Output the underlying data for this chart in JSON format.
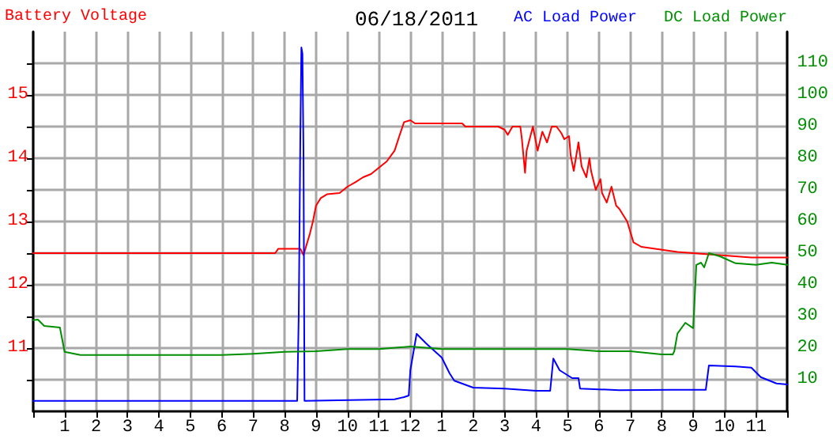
{
  "chart_data": {
    "type": "line",
    "title": "06/18/2011",
    "ylabel": "Battery Voltage",
    "xlim": [
      "2011-06-18T00:00",
      "2011-06-19T00:00"
    ],
    "xticks": [
      {
        "value": "2011-06-18T00:00",
        "label": null
      },
      {
        "value": "2011-06-18T01:00",
        "label": "1"
      },
      {
        "value": "2011-06-18T02:00",
        "label": "2"
      },
      {
        "value": "2011-06-18T03:00",
        "label": "3"
      },
      {
        "value": "2011-06-18T04:00",
        "label": "4"
      },
      {
        "value": "2011-06-18T05:00",
        "label": "5"
      },
      {
        "value": "2011-06-18T06:00",
        "label": "6"
      },
      {
        "value": "2011-06-18T07:00",
        "label": "7"
      },
      {
        "value": "2011-06-18T08:00",
        "label": "8"
      },
      {
        "value": "2011-06-18T09:00",
        "label": "9"
      },
      {
        "value": "2011-06-18T10:00",
        "label": "10"
      },
      {
        "value": "2011-06-18T11:00",
        "label": "11"
      },
      {
        "value": "2011-06-18T12:00",
        "label": "12"
      },
      {
        "value": "2011-06-18T13:00",
        "label": "1"
      },
      {
        "value": "2011-06-18T14:00",
        "label": "2"
      },
      {
        "value": "2011-06-18T15:00",
        "label": "3"
      },
      {
        "value": "2011-06-18T16:00",
        "label": "4"
      },
      {
        "value": "2011-06-18T17:00",
        "label": "5"
      },
      {
        "value": "2011-06-18T18:00",
        "label": "6"
      },
      {
        "value": "2011-06-18T19:00",
        "label": "7"
      },
      {
        "value": "2011-06-18T20:00",
        "label": "8"
      },
      {
        "value": "2011-06-18T21:00",
        "label": "9"
      },
      {
        "value": "2011-06-18T22:00",
        "label": "10"
      },
      {
        "value": "2011-06-18T23:00",
        "label": "11"
      },
      {
        "value": "2011-06-19T00:00",
        "label": null
      }
    ],
    "ylim": [
      10,
      16
    ],
    "yticks": [
      {
        "value": 10.5,
        "label": null
      },
      11,
      {
        "value": 11.5,
        "label": null
      },
      12,
      {
        "value": 12.5,
        "label": null
      },
      13,
      {
        "value": 13.5,
        "label": null
      },
      14,
      {
        "value": 14.5,
        "label": null
      },
      15,
      {
        "value": 15.5,
        "label": null
      }
    ],
    "y2lim": [
      0,
      120
    ],
    "y2ticks": [
      10,
      20,
      30,
      40,
      50,
      60,
      70,
      80,
      90,
      100,
      110
    ],
    "grid": true,
    "legend": "top right",
    "marker": "none",
    "line_style": "solid",
    "series": [
      {
        "color": "#ff0000",
        "x": [
          "2011-06-18T00:00",
          "2011-06-18T04:00",
          "2011-06-18T07:42",
          "2011-06-18T07:48",
          "2011-06-18T08:30",
          "2011-06-18T08:36",
          "2011-06-18T08:48",
          "2011-06-18T08:54",
          "2011-06-18T09:00",
          "2011-06-18T09:09",
          "2011-06-18T09:21",
          "2011-06-18T09:45",
          "2011-06-18T10:00",
          "2011-06-18T10:15",
          "2011-06-18T10:30",
          "2011-06-18T10:45",
          "2011-06-18T11:00",
          "2011-06-18T11:15",
          "2011-06-18T11:30",
          "2011-06-18T11:39",
          "2011-06-18T11:48",
          "2011-06-18T12:00",
          "2011-06-18T12:09",
          "2011-06-18T13:39",
          "2011-06-18T13:45",
          "2011-06-18T14:48",
          "2011-06-18T15:00",
          "2011-06-18T15:06",
          "2011-06-18T15:15",
          "2011-06-18T15:30",
          "2011-06-18T15:33",
          "2011-06-18T15:39",
          "2011-06-18T15:42",
          "2011-06-18T15:54",
          "2011-06-18T16:03",
          "2011-06-18T16:12",
          "2011-06-18T16:21",
          "2011-06-18T16:30",
          "2011-06-18T16:39",
          "2011-06-18T16:48",
          "2011-06-18T16:54",
          "2011-06-18T17:03",
          "2011-06-18T17:06",
          "2011-06-18T17:12",
          "2011-06-18T17:21",
          "2011-06-18T17:27",
          "2011-06-18T17:36",
          "2011-06-18T17:42",
          "2011-06-18T17:45",
          "2011-06-18T17:54",
          "2011-06-18T18:03",
          "2011-06-18T18:06",
          "2011-06-18T18:15",
          "2011-06-18T18:24",
          "2011-06-18T18:33",
          "2011-06-18T18:39",
          "2011-06-18T18:54",
          "2011-06-18T19:06",
          "2011-06-18T19:21",
          "2011-06-18T20:30",
          "2011-06-18T21:30",
          "2011-06-18T22:51",
          "2011-06-19T00:00"
        ],
        "values": [
          12.5,
          12.5,
          12.5,
          12.57,
          12.57,
          12.47,
          12.8,
          13.0,
          13.25,
          13.37,
          13.43,
          13.45,
          13.55,
          13.62,
          13.7,
          13.75,
          13.85,
          13.95,
          14.12,
          14.35,
          14.57,
          14.6,
          14.55,
          14.55,
          14.5,
          14.5,
          14.45,
          14.37,
          14.5,
          14.5,
          14.3,
          13.77,
          14.12,
          14.5,
          14.12,
          14.42,
          14.25,
          14.5,
          14.5,
          14.4,
          14.3,
          14.35,
          14.05,
          13.8,
          14.25,
          13.87,
          13.7,
          14.0,
          13.8,
          13.5,
          13.67,
          13.45,
          13.3,
          13.55,
          13.25,
          13.2,
          13.0,
          12.67,
          12.6,
          12.52,
          12.48,
          12.43,
          12.43
        ]
      },
      {
        "name": "AC Load Power",
        "color": "#0000ff",
        "axis": "y2",
        "x": [
          "2011-06-18T00:00",
          "2011-06-18T08:24",
          "2011-06-18T08:27",
          "2011-06-18T08:30",
          "2011-06-18T08:32",
          "2011-06-18T08:34",
          "2011-06-18T08:36",
          "2011-06-18T08:38",
          "2011-06-18T11:30",
          "2011-06-18T11:48",
          "2011-06-18T11:57",
          "2011-06-18T12:00",
          "2011-06-18T12:12",
          "2011-06-18T12:30",
          "2011-06-18T13:00",
          "2011-06-18T13:15",
          "2011-06-18T13:24",
          "2011-06-18T14:00",
          "2011-06-18T15:00",
          "2011-06-18T16:00",
          "2011-06-18T16:27",
          "2011-06-18T16:33",
          "2011-06-18T16:45",
          "2011-06-18T17:09",
          "2011-06-18T17:21",
          "2011-06-18T17:24",
          "2011-06-18T18:39",
          "2011-06-18T20:18",
          "2011-06-18T21:24",
          "2011-06-18T21:30",
          "2011-06-18T22:21",
          "2011-06-18T22:51",
          "2011-06-18T23:09",
          "2011-06-18T23:39",
          "2011-06-19T00:00"
        ],
        "values": [
          3.3,
          3.3,
          31,
          87,
          115,
          113,
          83,
          3.3,
          3.8,
          4.5,
          5,
          13,
          24.5,
          21.5,
          17,
          12,
          9.7,
          7.5,
          7.2,
          6.5,
          6.5,
          16.7,
          13,
          10.5,
          10.5,
          7.2,
          6.7,
          6.8,
          6.8,
          14.5,
          14.2,
          13.8,
          10.8,
          8.8,
          8.5
        ]
      },
      {
        "name": "DC Load Power",
        "color": "#008f00",
        "axis": "y2",
        "x": [
          "2011-06-18T00:00",
          "2011-06-18T00:09",
          "2011-06-18T00:21",
          "2011-06-18T00:51",
          "2011-06-18T01:00",
          "2011-06-18T01:30",
          "2011-06-18T02:00",
          "2011-06-18T03:00",
          "2011-06-18T04:00",
          "2011-06-18T05:00",
          "2011-06-18T06:00",
          "2011-06-18T07:00",
          "2011-06-18T08:00",
          "2011-06-18T09:00",
          "2011-06-18T10:00",
          "2011-06-18T11:00",
          "2011-06-18T12:00",
          "2011-06-18T13:00",
          "2011-06-18T14:00",
          "2011-06-18T15:00",
          "2011-06-18T16:00",
          "2011-06-18T17:00",
          "2011-06-18T18:00",
          "2011-06-18T19:00",
          "2011-06-18T20:00",
          "2011-06-18T20:21",
          "2011-06-18T20:24",
          "2011-06-18T20:30",
          "2011-06-18T20:45",
          "2011-06-18T21:00",
          "2011-06-18T21:06",
          "2011-06-18T21:15",
          "2011-06-18T21:21",
          "2011-06-18T21:30",
          "2011-06-18T21:51",
          "2011-06-18T22:21",
          "2011-06-18T23:00",
          "2011-06-18T23:30",
          "2011-06-19T00:00"
        ],
        "values": [
          28.8,
          29,
          27,
          26.5,
          18.8,
          17.8,
          17.8,
          17.8,
          17.8,
          17.8,
          17.8,
          18.2,
          18.8,
          19,
          19.7,
          19.7,
          20.5,
          19.7,
          19.7,
          19.7,
          19.7,
          19.7,
          19,
          19,
          18,
          18,
          19,
          24.6,
          28,
          26.3,
          46.3,
          47,
          45.5,
          50,
          49,
          46.8,
          46.3,
          47,
          46.3
        ]
      }
    ]
  }
}
